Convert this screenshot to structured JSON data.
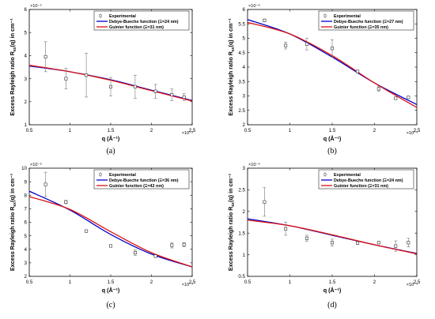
{
  "chart_data": [
    {
      "type": "scatter",
      "panel_label": "(a)",
      "xlabel": "q (Å⁻¹)",
      "ylabel": "Excess Rayleigh ratio R",
      "ylabel_sub": "ex",
      "ylabel_tail": "(q) in cm⁻¹",
      "x_multiplier": "×10⁻³",
      "y_multiplier": "×10⁻⁵",
      "xlim": [
        0.5,
        2.5
      ],
      "ylim": [
        1,
        6
      ],
      "xticks": [
        0.5,
        1,
        1.5,
        2,
        2.5
      ],
      "xtick_labels": [
        "0.5",
        "1",
        "1.5",
        "2",
        "2.5"
      ],
      "yticks": [
        1,
        2,
        3,
        4,
        5,
        6
      ],
      "ytick_labels": [
        "1",
        "2",
        "3",
        "4",
        "5",
        "6"
      ],
      "legend": [
        "Experimental",
        "Debye-Bueche function (Ξ=24 nm)",
        "Guinier function (Ξ=31 nm)"
      ],
      "series": [
        {
          "name": "Experimental",
          "kind": "errorbar",
          "x": [
            0.7,
            0.95,
            1.2,
            1.5,
            1.8,
            2.05,
            2.25,
            2.4
          ],
          "y": [
            3.95,
            3.0,
            3.15,
            2.65,
            2.65,
            2.45,
            2.3,
            2.2
          ],
          "err": [
            0.65,
            0.45,
            0.95,
            0.4,
            0.5,
            0.3,
            0.25,
            0.15
          ]
        },
        {
          "name": "Debye-Bueche function (Ξ=24 nm)",
          "kind": "line",
          "x": [
            0.5,
            1.0,
            1.5,
            2.0,
            2.5
          ],
          "y": [
            3.55,
            3.3,
            2.95,
            2.5,
            2.05
          ]
        },
        {
          "name": "Guinier function (Ξ=31 nm)",
          "kind": "line",
          "x": [
            0.5,
            1.0,
            1.5,
            2.0,
            2.5
          ],
          "y": [
            3.58,
            3.3,
            2.93,
            2.48,
            2.03
          ]
        }
      ]
    },
    {
      "type": "scatter",
      "panel_label": "(b)",
      "xlabel": "q (Å⁻¹)",
      "ylabel": "Excess Rayleigh ratio R",
      "ylabel_sub": "ex",
      "ylabel_tail": "(q) in cm⁻¹",
      "x_multiplier": "×10⁻³",
      "y_multiplier": "×10⁻⁶",
      "xlim": [
        0.5,
        2.5
      ],
      "ylim": [
        2,
        6
      ],
      "xticks": [
        0.5,
        1,
        1.5,
        2,
        2.5
      ],
      "xtick_labels": [
        "0.5",
        "1",
        "1.5",
        "2",
        "2.5"
      ],
      "yticks": [
        2,
        2.5,
        3,
        3.5,
        4,
        4.5,
        5,
        5.5,
        6
      ],
      "ytick_labels": [
        "2",
        "2.5",
        "3",
        "3.5",
        "4",
        "4.5",
        "5",
        "5.5",
        "6"
      ],
      "legend": [
        "Experimental",
        "Debye-Bueche function (Ξ=27 nm)",
        "Guinier function (Ξ=35 nm)"
      ],
      "series": [
        {
          "name": "Experimental",
          "kind": "errorbar",
          "x": [
            0.7,
            0.95,
            1.2,
            1.5,
            1.8,
            2.05,
            2.25,
            2.4
          ],
          "y": [
            5.62,
            4.75,
            4.8,
            4.65,
            3.85,
            3.25,
            2.92,
            2.95
          ],
          "err": [
            0.05,
            0.12,
            0.2,
            0.3,
            0.03,
            0.08,
            0.03,
            0.03
          ]
        },
        {
          "name": "Debye-Bueche function (Ξ=27 nm)",
          "kind": "line",
          "x": [
            0.5,
            1.0,
            1.5,
            2.0,
            2.5
          ],
          "y": [
            5.65,
            5.15,
            4.35,
            3.45,
            2.7
          ]
        },
        {
          "name": "Guinier function (Ξ=35 nm)",
          "kind": "line",
          "x": [
            0.5,
            1.0,
            1.5,
            2.0,
            2.5
          ],
          "y": [
            5.55,
            5.15,
            4.4,
            3.45,
            2.6
          ]
        }
      ]
    },
    {
      "type": "scatter",
      "panel_label": "(c)",
      "xlabel": "q (Å⁻¹)",
      "ylabel": "Excess Rayleigh ratio R",
      "ylabel_sub": "ex",
      "ylabel_tail": "(q) in cm⁻¹",
      "x_multiplier": "×10⁻³",
      "y_multiplier": "×10⁻⁶",
      "xlim": [
        0.5,
        2.5
      ],
      "ylim": [
        2,
        10
      ],
      "xticks": [
        0.5,
        1,
        1.5,
        2,
        2.5
      ],
      "xtick_labels": [
        "0.5",
        "1",
        "1.5",
        "2",
        "2.5"
      ],
      "yticks": [
        2,
        3,
        4,
        5,
        6,
        7,
        8,
        9,
        10
      ],
      "ytick_labels": [
        "2",
        "3",
        "4",
        "5",
        "6",
        "7",
        "8",
        "9",
        "10"
      ],
      "legend": [
        "Experimental",
        "Debye-Bueche function (Ξ=36 nm)",
        "Guinier function (Ξ=42 nm)"
      ],
      "series": [
        {
          "name": "Experimental",
          "kind": "errorbar",
          "x": [
            0.7,
            0.95,
            1.2,
            1.5,
            1.8,
            2.05,
            2.25,
            2.4
          ],
          "y": [
            8.8,
            7.5,
            5.35,
            4.25,
            3.75,
            3.5,
            4.3,
            4.35
          ],
          "err": [
            0.9,
            0.12,
            0.08,
            0.05,
            0.2,
            0.1,
            0.2,
            0.15
          ]
        },
        {
          "name": "Debye-Bueche function (Ξ=36 nm)",
          "kind": "line",
          "x": [
            0.5,
            1.0,
            1.5,
            2.0,
            2.5
          ],
          "y": [
            8.3,
            6.9,
            5.1,
            3.65,
            2.7
          ]
        },
        {
          "name": "Guinier function (Ξ=42 nm)",
          "kind": "line",
          "x": [
            0.5,
            1.0,
            1.5,
            2.0,
            2.5
          ],
          "y": [
            7.9,
            6.95,
            5.3,
            3.75,
            2.7
          ]
        }
      ]
    },
    {
      "type": "scatter",
      "panel_label": "(d)",
      "xlabel": "q (Å⁻¹)",
      "ylabel": "Excess Rayleigh ratio R",
      "ylabel_sub": "ex",
      "ylabel_tail": "(q) in cm⁻¹",
      "x_multiplier": "×10⁻³",
      "y_multiplier": "×10⁻⁶",
      "xlim": [
        0.5,
        2.5
      ],
      "ylim": [
        0.5,
        3
      ],
      "xticks": [
        0.5,
        1,
        1.5,
        2,
        2.5
      ],
      "xtick_labels": [
        "0.5",
        "1",
        "1.5",
        "2",
        "2.5"
      ],
      "yticks": [
        0.5,
        1,
        1.5,
        2,
        2.5,
        3
      ],
      "ytick_labels": [
        "0.5",
        "1",
        "1.5",
        "2",
        "2.5",
        "3"
      ],
      "legend": [
        "Experimental",
        "Debye-Bueche function (Ξ=24 nm)",
        "Guinier function (Ξ=31 nm)"
      ],
      "series": [
        {
          "name": "Experimental",
          "kind": "errorbar",
          "x": [
            0.7,
            0.95,
            1.2,
            1.5,
            1.8,
            2.05,
            2.25,
            2.4
          ],
          "y": [
            2.22,
            1.6,
            1.38,
            1.28,
            1.27,
            1.28,
            1.2,
            1.28
          ],
          "err": [
            0.33,
            0.15,
            0.07,
            0.08,
            0.03,
            0.02,
            0.12,
            0.1
          ]
        },
        {
          "name": "Debye-Bueche function (Ξ=24 nm)",
          "kind": "line",
          "x": [
            0.5,
            1.0,
            1.5,
            2.0,
            2.5
          ],
          "y": [
            1.83,
            1.67,
            1.45,
            1.23,
            1.03
          ]
        },
        {
          "name": "Guinier function (Ξ=31 nm)",
          "kind": "line",
          "x": [
            0.5,
            1.0,
            1.5,
            2.0,
            2.5
          ],
          "y": [
            1.8,
            1.67,
            1.46,
            1.23,
            1.02
          ]
        }
      ]
    }
  ],
  "colors": {
    "debye": "#0000cc",
    "guinier": "#dd1111",
    "marker": "#333333",
    "errorbar": "#777777"
  }
}
